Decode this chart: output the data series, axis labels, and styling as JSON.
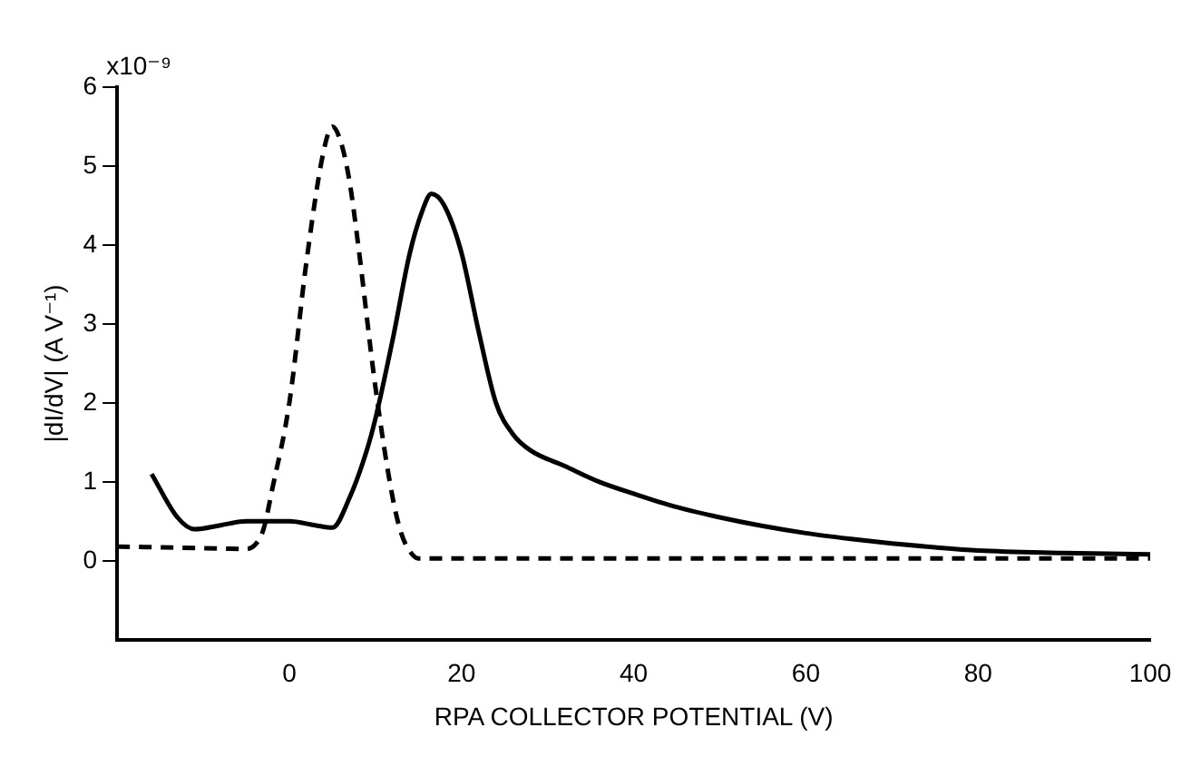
{
  "chart_data": {
    "type": "line",
    "xlabel": "RPA COLLECTOR POTENTIAL (V)",
    "ylabel": "|dI/dV| (A V⁻¹)",
    "annotations": [
      "x10⁻⁹"
    ],
    "xlim": [
      -20,
      100
    ],
    "xticks": [
      0,
      20,
      40,
      60,
      80,
      100
    ],
    "ylim": [
      -1,
      6
    ],
    "yticks": [
      0,
      1,
      2,
      3,
      4,
      5,
      6
    ],
    "grid": false,
    "legend": false,
    "marker": "none",
    "series": [
      {
        "color": "#000000",
        "line_style": "solid",
        "x": [
          -16,
          -13,
          -11,
          -8,
          -5,
          -2,
          0,
          3,
          5,
          7,
          9,
          10,
          12,
          14,
          15.5,
          16.5,
          18,
          20,
          22,
          24,
          26,
          28,
          32,
          36,
          40,
          45,
          50,
          55,
          60,
          65,
          70,
          75,
          80,
          90,
          100
        ],
        "values": [
          1.1,
          0.55,
          0.4,
          0.45,
          0.5,
          0.5,
          0.5,
          0.45,
          0.42,
          0.8,
          1.4,
          1.8,
          2.8,
          3.9,
          4.45,
          4.65,
          4.5,
          3.9,
          2.9,
          2.0,
          1.6,
          1.4,
          1.2,
          1.0,
          0.85,
          0.68,
          0.55,
          0.44,
          0.35,
          0.28,
          0.22,
          0.17,
          0.13,
          0.1,
          0.08
        ]
      },
      {
        "color": "#000000",
        "line_style": "dashed",
        "x": [
          -20,
          -10,
          -5,
          -4,
          -3,
          -2,
          0,
          2,
          4,
          5,
          6,
          7,
          8,
          10,
          12,
          13,
          14,
          15,
          20,
          40,
          60,
          80,
          100
        ],
        "values": [
          0.18,
          0.16,
          0.15,
          0.2,
          0.4,
          0.9,
          2.0,
          3.8,
          5.2,
          5.5,
          5.3,
          4.8,
          4.0,
          2.2,
          0.8,
          0.35,
          0.12,
          0.03,
          0.03,
          0.03,
          0.03,
          0.03,
          0.03
        ]
      }
    ]
  }
}
